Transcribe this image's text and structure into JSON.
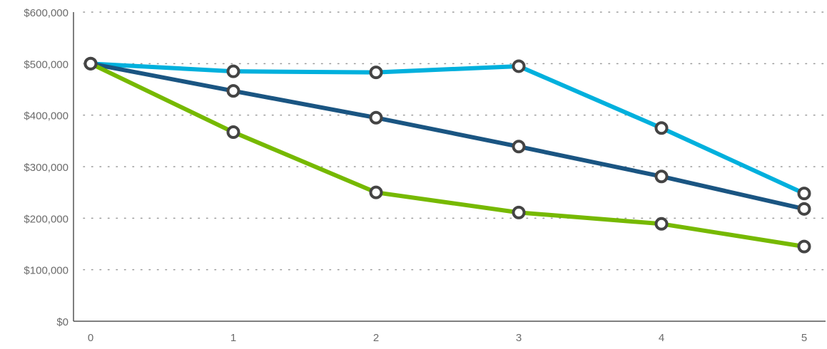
{
  "chart_data": {
    "type": "line",
    "title": "",
    "xlabel": "",
    "ylabel": "",
    "x": [
      0,
      1,
      2,
      3,
      4,
      5
    ],
    "x_tick_labels": [
      "0",
      "1",
      "2",
      "3",
      "4",
      "5"
    ],
    "y_tick_labels": [
      "$0",
      "$100,000",
      "$200,000",
      "$300,000",
      "$400,000",
      "$500,000",
      "$600,000"
    ],
    "y_ticks": [
      0,
      100000,
      200000,
      300000,
      400000,
      500000,
      600000
    ],
    "ylim": [
      0,
      600000
    ],
    "xlim": [
      0,
      5
    ],
    "grid": true,
    "legend": "none",
    "series": [
      {
        "color": "#00b0dd",
        "values": [
          500000,
          485000,
          483000,
          495000,
          375000,
          248000
        ]
      },
      {
        "color": "#1a5582",
        "values": [
          500000,
          447000,
          395000,
          339000,
          281000,
          218000
        ]
      },
      {
        "color": "#76b900",
        "values": [
          500000,
          367000,
          250000,
          211000,
          189000,
          145000
        ]
      }
    ]
  }
}
